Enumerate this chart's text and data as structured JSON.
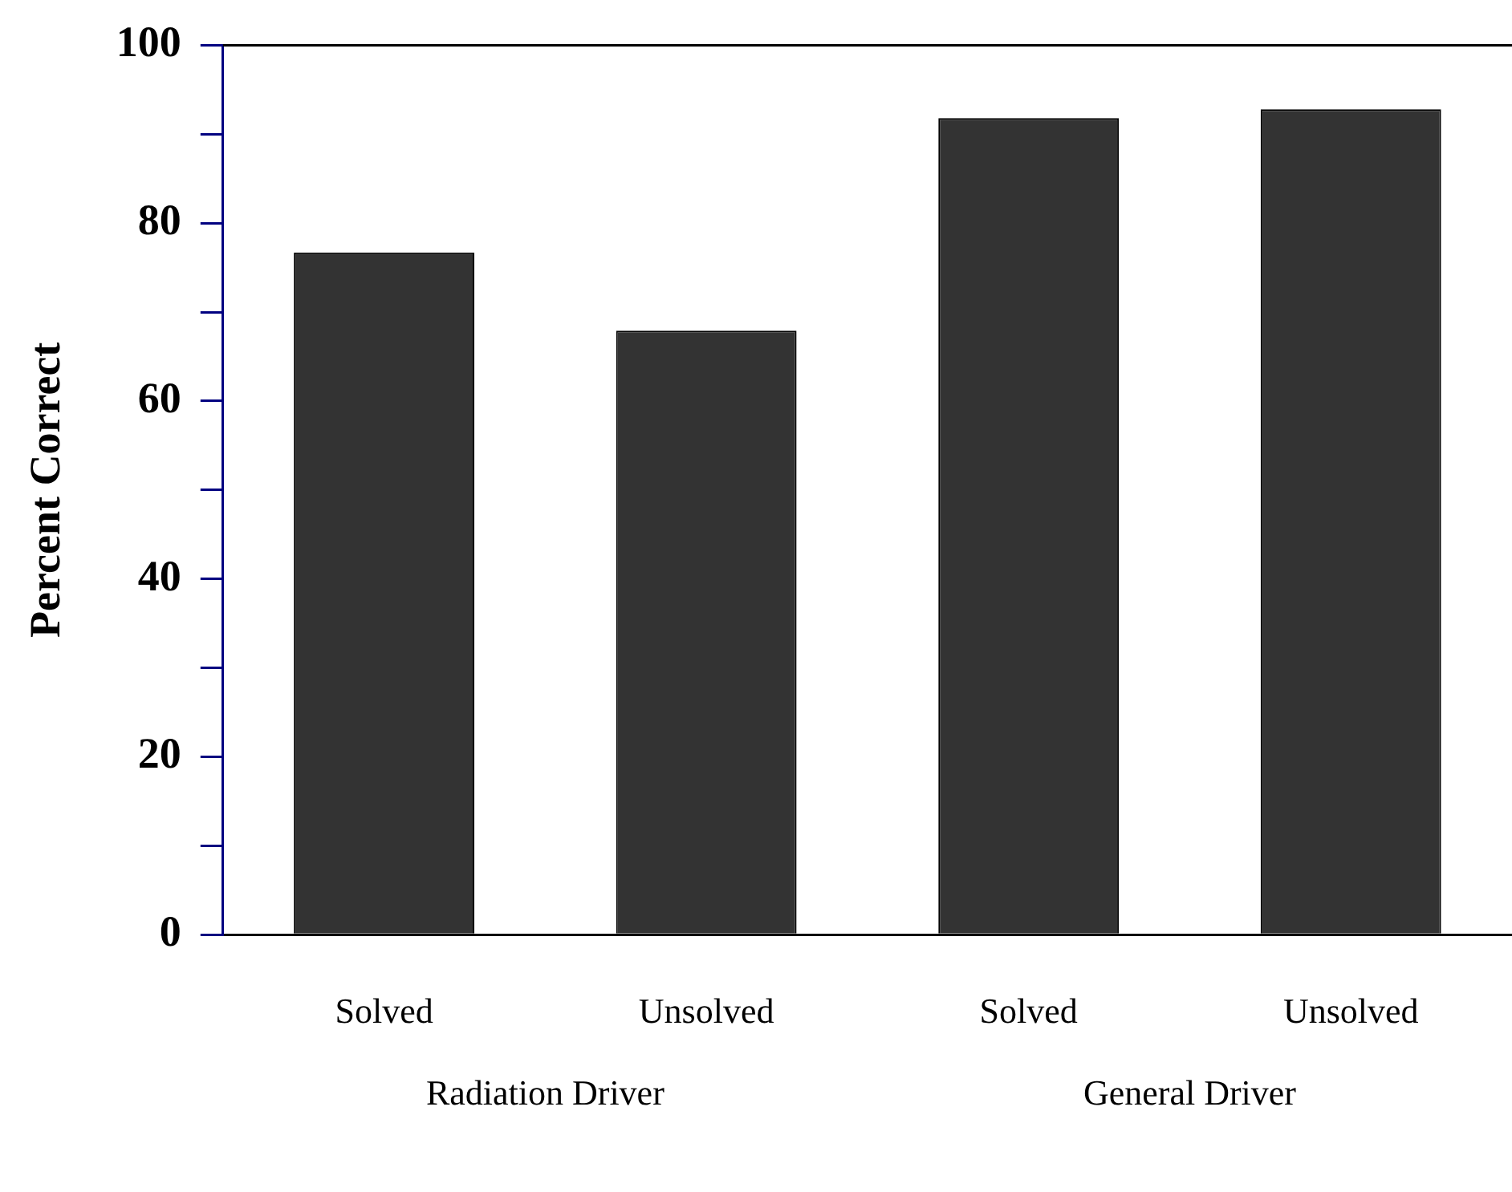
{
  "chart_data": {
    "type": "bar",
    "ylabel": "Percent Correct",
    "categories": [
      "Solved",
      "Unsolved",
      "Solved",
      "Unsolved"
    ],
    "values": [
      76.7,
      67.9,
      91.8,
      92.8
    ],
    "color": "#333333",
    "ylim": [
      0,
      100
    ],
    "yticks": [
      0,
      {
        "value": 10,
        "label": null
      },
      20,
      {
        "value": 30,
        "label": null
      },
      40,
      {
        "value": 50,
        "label": null
      },
      60,
      {
        "value": 70,
        "label": null
      },
      80,
      {
        "value": 90,
        "label": null
      },
      100
    ],
    "annotations": [
      "Radiation Driver",
      "General Driver"
    ],
    "grid": false,
    "legend": false
  }
}
